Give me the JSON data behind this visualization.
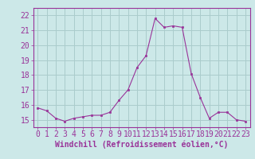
{
  "x": [
    0,
    1,
    2,
    3,
    4,
    5,
    6,
    7,
    8,
    9,
    10,
    11,
    12,
    13,
    14,
    15,
    16,
    17,
    18,
    19,
    20,
    21,
    22,
    23
  ],
  "y": [
    15.8,
    15.6,
    15.1,
    14.9,
    15.1,
    15.2,
    15.3,
    15.3,
    15.5,
    16.3,
    17.0,
    18.5,
    19.3,
    21.8,
    21.2,
    21.3,
    21.2,
    18.1,
    16.5,
    15.1,
    15.5,
    15.5,
    15.0,
    14.9
  ],
  "line_color": "#993399",
  "marker": "s",
  "marker_size": 2,
  "bg_color": "#cce8e8",
  "grid_color": "#aacccc",
  "xlabel": "Windchill (Refroidissement éolien,°C)",
  "ylim": [
    14.5,
    22.5
  ],
  "xlim": [
    -0.5,
    23.5
  ],
  "yticks": [
    15,
    16,
    17,
    18,
    19,
    20,
    21,
    22
  ],
  "xticks": [
    0,
    1,
    2,
    3,
    4,
    5,
    6,
    7,
    8,
    9,
    10,
    11,
    12,
    13,
    14,
    15,
    16,
    17,
    18,
    19,
    20,
    21,
    22,
    23
  ],
  "tick_fontsize": 7,
  "xlabel_fontsize": 7
}
